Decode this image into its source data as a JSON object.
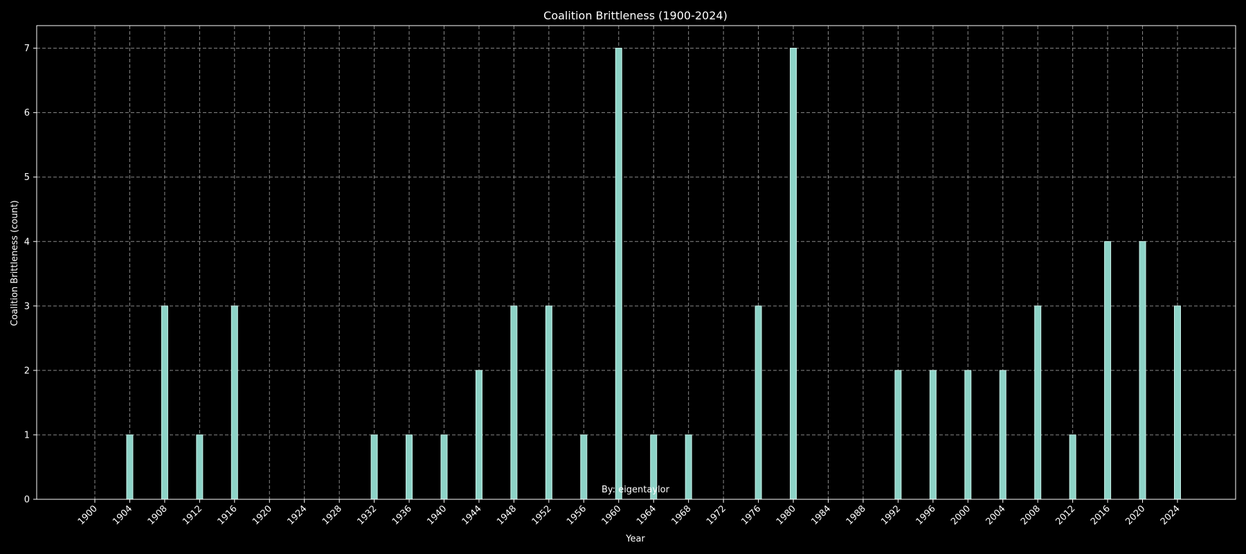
{
  "chart_data": {
    "type": "bar",
    "title": "Coalition Brittleness (1900-2024)",
    "xlabel": "Year",
    "ylabel": "Coalition Brittleness (count)",
    "annotation": "By: eigentaylor",
    "categories": [
      "1900",
      "1904",
      "1908",
      "1912",
      "1916",
      "1920",
      "1924",
      "1928",
      "1932",
      "1936",
      "1940",
      "1944",
      "1948",
      "1952",
      "1956",
      "1960",
      "1964",
      "1968",
      "1972",
      "1976",
      "1980",
      "1984",
      "1988",
      "1992",
      "1996",
      "2000",
      "2004",
      "2008",
      "2012",
      "2016",
      "2020",
      "2024"
    ],
    "values": [
      0,
      1,
      3,
      1,
      3,
      0,
      0,
      0,
      1,
      1,
      1,
      2,
      3,
      3,
      1,
      7,
      1,
      1,
      0,
      3,
      7,
      0,
      0,
      2,
      2,
      2,
      2,
      3,
      1,
      4,
      4,
      3
    ],
    "yticks": [
      0,
      1,
      2,
      3,
      4,
      5,
      6,
      7
    ],
    "ylim": [
      0,
      7.35
    ],
    "grid": true,
    "colors": {
      "background": "#000000",
      "bar_fill": "#8dd3c7",
      "bar_edge": "#c8f0e8",
      "grid": "#8a8a8a",
      "axis": "#ffffff",
      "text": "#ffffff"
    }
  }
}
